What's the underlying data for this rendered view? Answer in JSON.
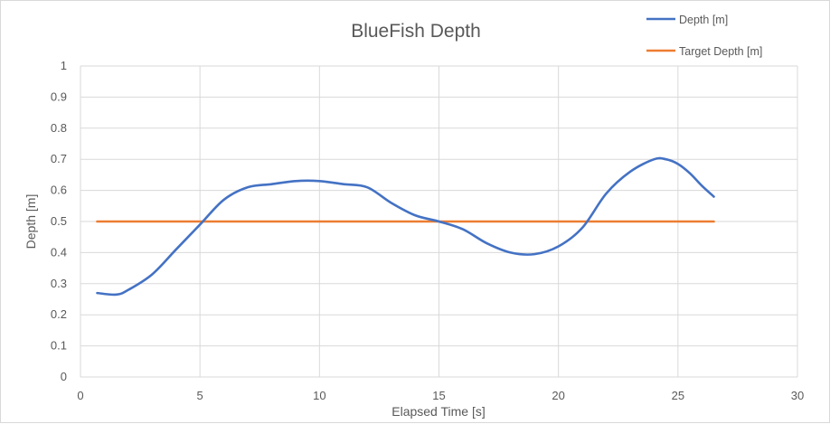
{
  "chart_data": {
    "type": "line",
    "title": "BlueFish Depth",
    "xlabel": "Elapsed Time [s]",
    "ylabel": "Depth [m]",
    "xlim": [
      0,
      30
    ],
    "ylim": [
      0,
      1
    ],
    "x_ticks": [
      "0",
      "5",
      "10",
      "15",
      "20",
      "25",
      "30"
    ],
    "y_ticks": [
      "0",
      "0.1",
      "0.2",
      "0.3",
      "0.4",
      "0.5",
      "0.6",
      "0.7",
      "0.8",
      "0.9",
      "1"
    ],
    "grid": true,
    "legend_position": "top-right",
    "series": [
      {
        "name": "Depth [m]",
        "color": "#4472C4",
        "x": [
          0.7,
          1.5,
          2.0,
          3.0,
          4.0,
          5.0,
          6.0,
          7.0,
          8.0,
          9.0,
          10.0,
          11.0,
          12.0,
          13.0,
          14.0,
          15.0,
          16.0,
          17.0,
          18.0,
          19.0,
          20.0,
          21.0,
          22.0,
          23.0,
          24.0,
          24.5,
          25.0,
          25.5,
          26.0,
          26.5
        ],
        "y": [
          0.27,
          0.265,
          0.28,
          0.33,
          0.41,
          0.49,
          0.57,
          0.61,
          0.62,
          0.63,
          0.63,
          0.62,
          0.61,
          0.56,
          0.52,
          0.5,
          0.475,
          0.43,
          0.4,
          0.395,
          0.42,
          0.48,
          0.59,
          0.66,
          0.7,
          0.7,
          0.685,
          0.655,
          0.615,
          0.58
        ]
      },
      {
        "name": "Target Depth [m]",
        "color": "#ED7D31",
        "x": [
          0.7,
          26.5
        ],
        "y": [
          0.5,
          0.5
        ]
      }
    ]
  }
}
